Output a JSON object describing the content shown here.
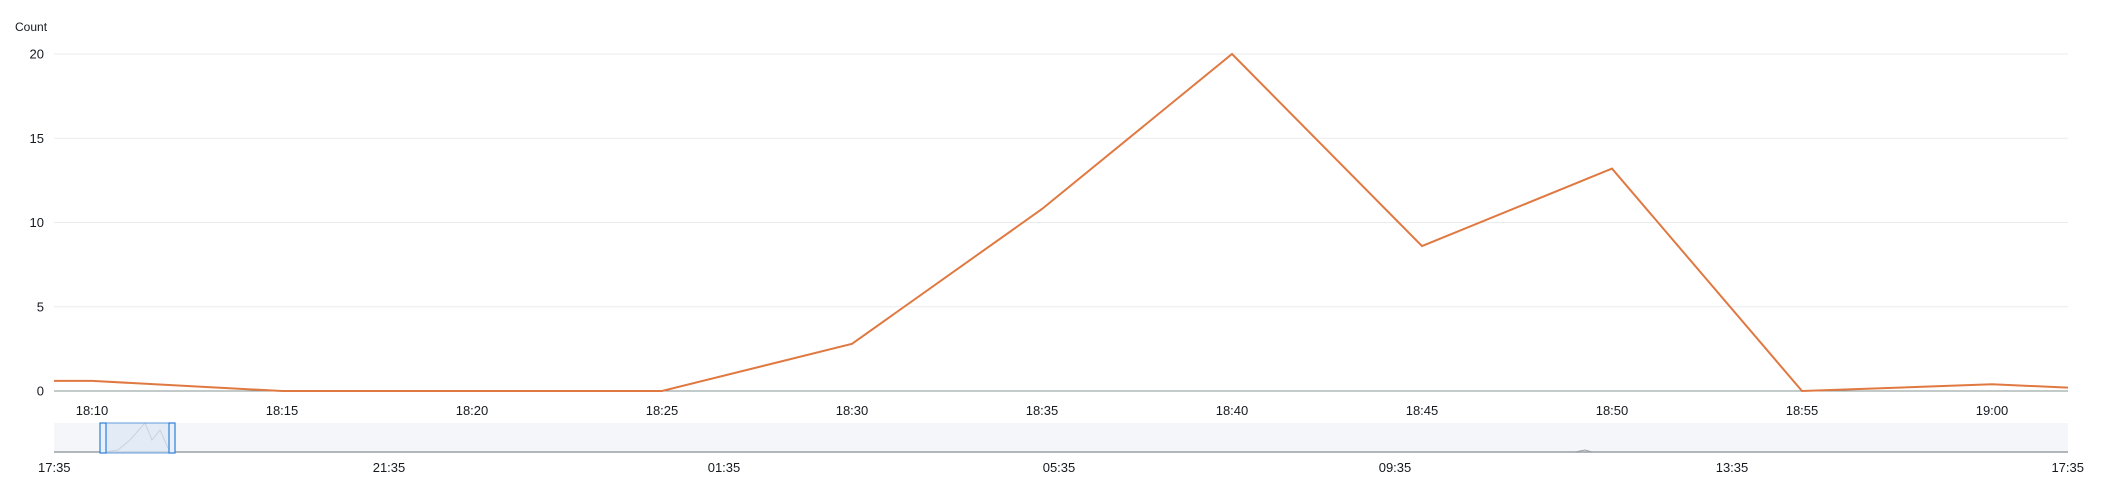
{
  "colors": {
    "series": "#e07941",
    "nav_series": "#9aa0a6"
  },
  "chart_data": {
    "type": "line",
    "ylabel": "Count",
    "ylim": [
      0,
      20
    ],
    "yticks": [
      0,
      5,
      10,
      15,
      20
    ],
    "x_ticks": [
      "18:10",
      "18:15",
      "18:20",
      "18:25",
      "18:30",
      "18:35",
      "18:40",
      "18:45",
      "18:50",
      "18:55",
      "19:00"
    ],
    "series": [
      {
        "points": [
          {
            "x": "18:09",
            "y": 0.6
          },
          {
            "x": "18:10",
            "y": 0.6
          },
          {
            "x": "18:15",
            "y": 0
          },
          {
            "x": "18:20",
            "y": 0
          },
          {
            "x": "18:25",
            "y": 0
          },
          {
            "x": "18:30",
            "y": 2.8
          },
          {
            "x": "18:35",
            "y": 10.8
          },
          {
            "x": "18:40",
            "y": 20
          },
          {
            "x": "18:45",
            "y": 8.6
          },
          {
            "x": "18:50",
            "y": 13.2
          },
          {
            "x": "18:55",
            "y": 0
          },
          {
            "x": "19:00",
            "y": 0.4
          },
          {
            "x": "19:02",
            "y": 0.2
          }
        ]
      }
    ],
    "navigator": {
      "x_ticks": [
        "17:35",
        "21:35",
        "01:35",
        "05:35",
        "09:35",
        "13:35",
        "17:35"
      ]
    }
  }
}
